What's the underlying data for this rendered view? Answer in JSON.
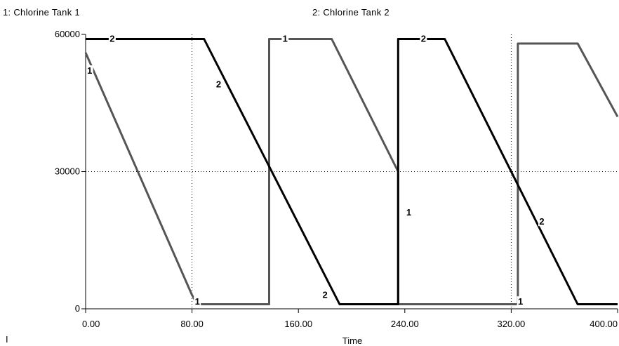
{
  "legend": [
    {
      "label": "1: Chlorine  Tank 1"
    },
    {
      "label": "2: Chlorine  Tank 2"
    }
  ],
  "mode_mark": "I",
  "chart_data": {
    "type": "line",
    "xlabel": "Time",
    "ylabel": "",
    "xlim": [
      0,
      400
    ],
    "ylim": [
      0,
      60000
    ],
    "x_ticks": [
      {
        "value": 0,
        "label": "0.00"
      },
      {
        "value": 80,
        "label": "80.00"
      },
      {
        "value": 160,
        "label": "160.00"
      },
      {
        "value": 240,
        "label": "240.00"
      },
      {
        "value": 320,
        "label": "320.00"
      },
      {
        "value": 400,
        "label": "400.00"
      }
    ],
    "y_ticks": [
      {
        "value": 0,
        "label": "0"
      },
      {
        "value": 30000,
        "label": "30000"
      },
      {
        "value": 60000,
        "label": "60000"
      }
    ],
    "grid": "dotted lines at x=80, x=320 and y=30000",
    "series": [
      {
        "name": "1",
        "color": "#555555",
        "x": [
          0,
          80,
          84,
          84,
          138,
          138,
          185,
          235,
          235,
          275,
          322,
          322,
          325,
          325,
          370,
          400
        ],
        "y": [
          56000,
          3000,
          1000,
          1000,
          1000,
          59000,
          59000,
          30000,
          1000,
          1000,
          1000,
          1000,
          1000,
          58000,
          58000,
          42000
        ],
        "markers": [
          {
            "x": 3,
            "y": 52000
          },
          {
            "x": 84,
            "y": 1500
          },
          {
            "x": 150,
            "y": 59000
          },
          {
            "x": 243,
            "y": 21000
          },
          {
            "x": 327,
            "y": 1500
          }
        ]
      },
      {
        "name": "2",
        "color": "#000000",
        "x": [
          0,
          89,
          191,
          191,
          235,
          235,
          270,
          370,
          370,
          400
        ],
        "y": [
          59000,
          59000,
          1000,
          1000,
          1000,
          59000,
          59000,
          1000,
          1000,
          1000
        ],
        "markers": [
          {
            "x": 20,
            "y": 59000
          },
          {
            "x": 100,
            "y": 49000
          },
          {
            "x": 180,
            "y": 3000
          },
          {
            "x": 254,
            "y": 59000
          },
          {
            "x": 343,
            "y": 19000
          }
        ]
      }
    ]
  }
}
